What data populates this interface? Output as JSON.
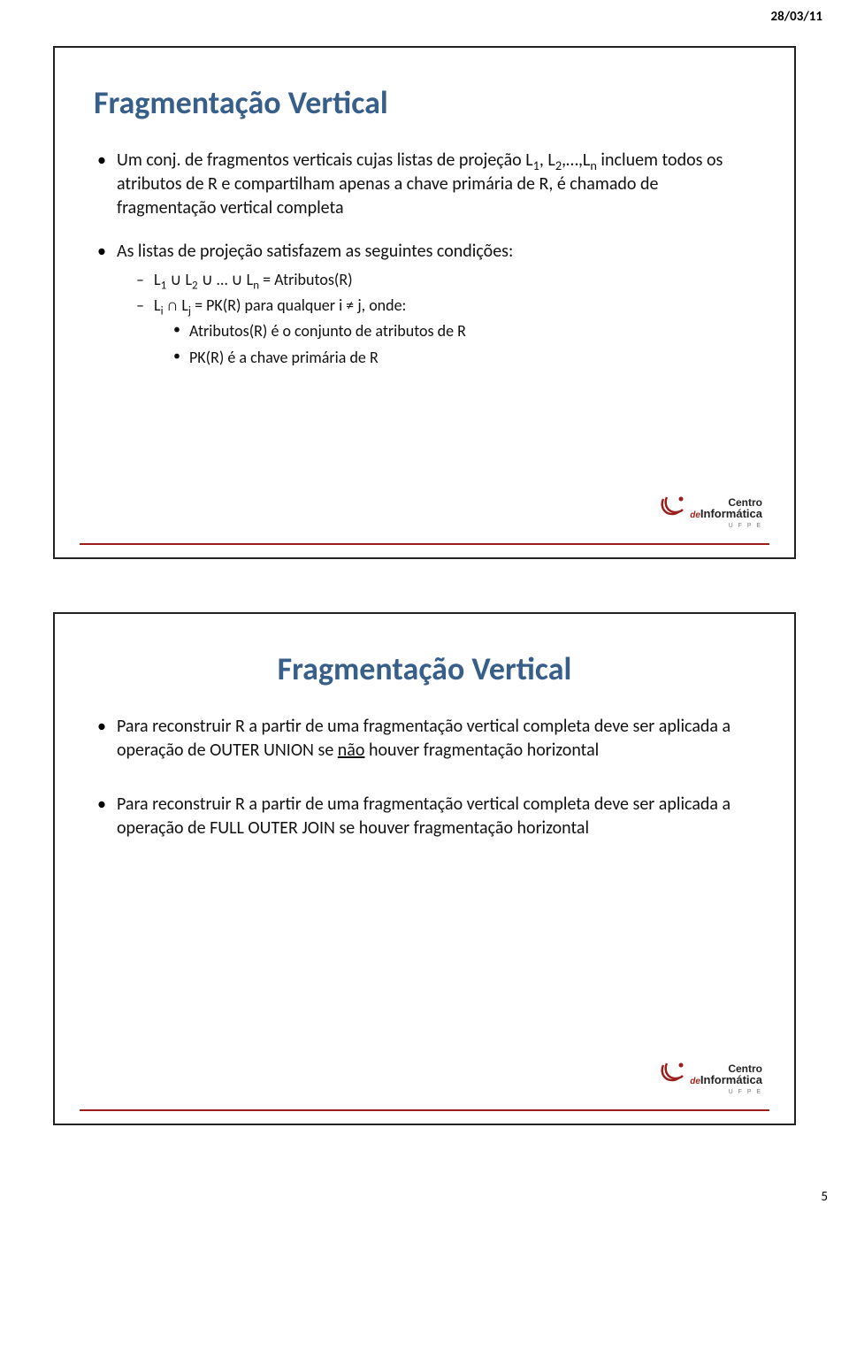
{
  "date": "28/03/11",
  "page_number": "5",
  "colors": {
    "title": "#385e8a",
    "rule": "#9a1f1c",
    "border": "#222222",
    "logo_red": "#9a1f1c",
    "logo_gray": "#666666"
  },
  "logo": {
    "line1": "Centro",
    "prefix": "de",
    "line2": "Informática",
    "sub": "U F P E"
  },
  "slide1": {
    "title": "Fragmentação Vertical",
    "b1_html": "Um conj. de fragmentos verticais cujas listas de projeção L<span class='subn'>1</span>, L<span class='subn'>2</span>,…,L<span class='subn'>n</span> incluem todos os atributos de R e compartilham apenas a chave primária de R, é chamado de fragmentação vertical completa",
    "b2": "As listas de projeção satisfazem as seguintes condições:",
    "s1_html": "L<span class='subn'>1</span> ∪ L<span class='subn'>2</span> ∪ … ∪ L<span class='subn'>n</span> = Atributos(R)",
    "s2_html": "L<span class='subn'>i</span> ∩ L<span class='subn'>j</span> = PK(R) para qualquer i ≠ j, onde:",
    "ss1": "Atributos(R) é o conjunto de atributos de R",
    "ss2": "PK(R) é a chave primária de R"
  },
  "slide2": {
    "title": "Fragmentação Vertical",
    "b1_html": "Para reconstruir R a partir de uma fragmentação vertical completa deve ser aplicada a operação de OUTER UNION se <span class='underline'>não</span> houver fragmentação horizontal",
    "b2": "Para reconstruir R a partir de uma fragmentação vertical completa deve ser aplicada a operação de FULL OUTER JOIN se houver fragmentação horizontal"
  }
}
